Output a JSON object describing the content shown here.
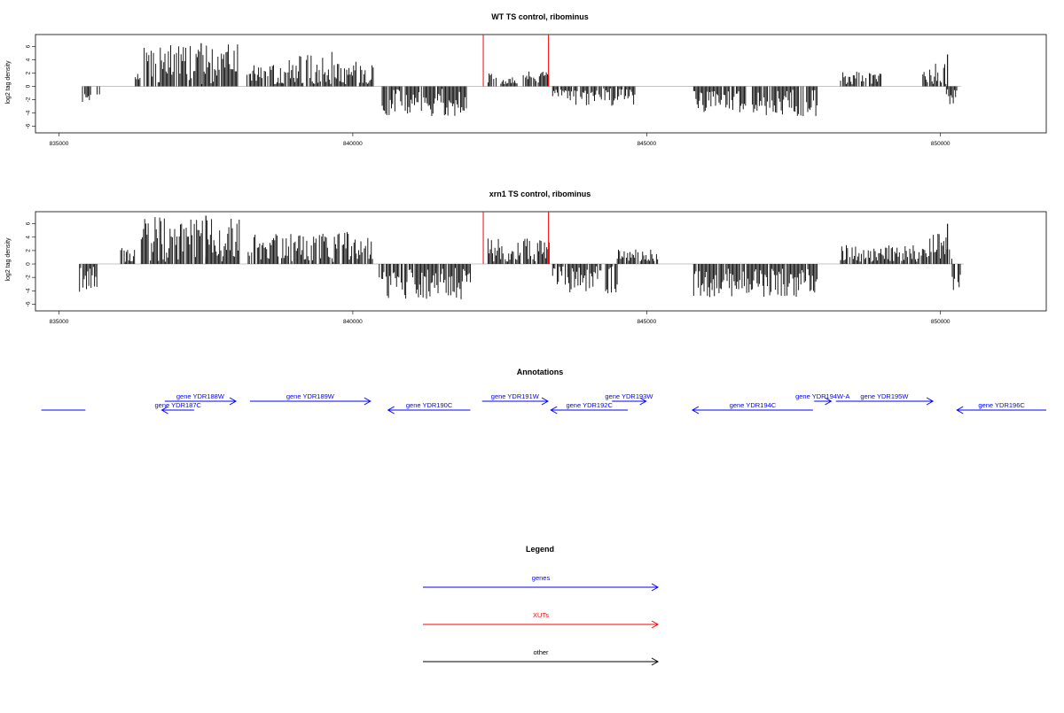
{
  "chart_data": [
    {
      "type": "bar",
      "title": "WT TS control, ribominus",
      "ylabel": "log2 tag density",
      "xlim": [
        834600,
        851800
      ],
      "ylim": [
        -7,
        7.8
      ],
      "x_ticks": [
        835000,
        840000,
        845000,
        850000
      ],
      "x_tick_labels": [
        "835000",
        "840000",
        "845000",
        "850000"
      ],
      "y_ticks": [
        -6,
        -4,
        -2,
        0,
        2,
        4,
        6
      ],
      "y_tick_labels": [
        "-6",
        "-4",
        "-2",
        "0",
        "2",
        "4",
        "6"
      ],
      "xut_lines_x": [
        842220,
        843330
      ],
      "coverage_segments": [
        {
          "start": 835400,
          "end": 835550,
          "mean": -1.5,
          "amp": 1.2
        },
        {
          "start": 835650,
          "end": 835700,
          "mean": -1.5,
          "amp": 0.4
        },
        {
          "start": 836300,
          "end": 836380,
          "mean": 1.5,
          "amp": 1.2
        },
        {
          "start": 836450,
          "end": 838050,
          "mean": 3.2,
          "amp": 3.2
        },
        {
          "start": 838200,
          "end": 838800,
          "mean": 1.6,
          "amp": 1.6
        },
        {
          "start": 838800,
          "end": 839700,
          "mean": 2.4,
          "amp": 2.8
        },
        {
          "start": 839700,
          "end": 840350,
          "mean": 1.8,
          "amp": 2.0
        },
        {
          "start": 840500,
          "end": 841950,
          "mean": -2.3,
          "amp": 2.2
        },
        {
          "start": 842300,
          "end": 842450,
          "mean": 1.2,
          "amp": 1.4
        },
        {
          "start": 842500,
          "end": 842800,
          "mean": 0.8,
          "amp": 0.6
        },
        {
          "start": 842900,
          "end": 843350,
          "mean": 1.4,
          "amp": 1.0
        },
        {
          "start": 843400,
          "end": 843700,
          "mean": -1.2,
          "amp": 0.7
        },
        {
          "start": 843700,
          "end": 844800,
          "mean": -1.4,
          "amp": 1.6
        },
        {
          "start": 845800,
          "end": 846700,
          "mean": -2.3,
          "amp": 1.6
        },
        {
          "start": 846800,
          "end": 847900,
          "mean": -2.5,
          "amp": 2.0
        },
        {
          "start": 848300,
          "end": 849000,
          "mean": 1.1,
          "amp": 1.2
        },
        {
          "start": 849700,
          "end": 850100,
          "mean": 1.6,
          "amp": 2.0
        },
        {
          "start": 850100,
          "end": 850300,
          "mean": -1.5,
          "amp": 1.3
        }
      ],
      "peaks": [
        {
          "x": 850120,
          "y": 4.8
        },
        {
          "x": 837420,
          "y": 6.5
        }
      ]
    },
    {
      "type": "bar",
      "title": "xrn1 TS control, ribominus",
      "ylabel": "log2 tag density",
      "xlim": [
        834600,
        851800
      ],
      "ylim": [
        -7,
        7.8
      ],
      "x_ticks": [
        835000,
        840000,
        845000,
        850000
      ],
      "x_tick_labels": [
        "835000",
        "840000",
        "845000",
        "850000"
      ],
      "y_ticks": [
        -6,
        -4,
        -2,
        0,
        2,
        4,
        6
      ],
      "y_tick_labels": [
        "-6",
        "-4",
        "-2",
        "0",
        "2",
        "4",
        "6"
      ],
      "xut_lines_x": [
        842220,
        843330
      ],
      "coverage_segments": [
        {
          "start": 835350,
          "end": 835650,
          "mean": -2.0,
          "amp": 2.2
        },
        {
          "start": 836050,
          "end": 836300,
          "mean": 1.2,
          "amp": 1.2
        },
        {
          "start": 836400,
          "end": 838100,
          "mean": 3.6,
          "amp": 3.4
        },
        {
          "start": 838200,
          "end": 839000,
          "mean": 2.4,
          "amp": 2.2
        },
        {
          "start": 839000,
          "end": 840350,
          "mean": 2.2,
          "amp": 2.6
        },
        {
          "start": 840450,
          "end": 842000,
          "mean": -3.0,
          "amp": 2.4
        },
        {
          "start": 842300,
          "end": 843350,
          "mean": 1.8,
          "amp": 2.0
        },
        {
          "start": 843400,
          "end": 844500,
          "mean": -2.3,
          "amp": 2.2
        },
        {
          "start": 844500,
          "end": 845200,
          "mean": 1.0,
          "amp": 1.2
        },
        {
          "start": 845800,
          "end": 847950,
          "mean": -2.8,
          "amp": 2.2
        },
        {
          "start": 848300,
          "end": 849800,
          "mean": 1.4,
          "amp": 1.4
        },
        {
          "start": 849800,
          "end": 850200,
          "mean": 2.6,
          "amp": 2.0
        },
        {
          "start": 850200,
          "end": 850350,
          "mean": -2.5,
          "amp": 1.6
        }
      ],
      "peaks": [
        {
          "x": 850120,
          "y": 6.0
        },
        {
          "x": 837500,
          "y": 7.2
        }
      ]
    }
  ],
  "annotations": {
    "title": "Annotations",
    "features": [
      {
        "label": "",
        "start": 834700,
        "end": 835450,
        "strand": "none",
        "row": 1,
        "kind": "gene"
      },
      {
        "label": "gene YDR187C",
        "start": 836750,
        "end": 837300,
        "strand": "-",
        "row": 1,
        "kind": "gene"
      },
      {
        "label": "gene YDR188W",
        "start": 836800,
        "end": 838010,
        "strand": "+",
        "row": 0,
        "kind": "gene"
      },
      {
        "label": "gene YDR189W",
        "start": 838250,
        "end": 840300,
        "strand": "+",
        "row": 0,
        "kind": "gene"
      },
      {
        "label": "gene YDR190C",
        "start": 840600,
        "end": 842000,
        "strand": "-",
        "row": 1,
        "kind": "gene"
      },
      {
        "label": "gene YDR191W",
        "start": 842200,
        "end": 843320,
        "strand": "+",
        "row": 0,
        "kind": "gene"
      },
      {
        "label": "gene YDR192C",
        "start": 843370,
        "end": 844680,
        "strand": "-",
        "row": 1,
        "kind": "gene"
      },
      {
        "label": "gene YDR193W",
        "start": 844410,
        "end": 844990,
        "strand": "+",
        "row": 0,
        "kind": "gene"
      },
      {
        "label": "gene YDR194C",
        "start": 845780,
        "end": 847830,
        "strand": "-",
        "row": 1,
        "kind": "gene"
      },
      {
        "label": "gene YDR194W-A",
        "start": 847850,
        "end": 848140,
        "strand": "+",
        "row": 0,
        "kind": "gene"
      },
      {
        "label": "gene YDR195W",
        "start": 848220,
        "end": 849870,
        "strand": "+",
        "row": 0,
        "kind": "gene"
      },
      {
        "label": "gene YDR196C",
        "start": 850280,
        "end": 851800,
        "strand": "-",
        "row": 1,
        "kind": "gene"
      }
    ]
  },
  "legend": {
    "title": "Legend",
    "items": [
      {
        "label": "genes",
        "color": "#0000ff"
      },
      {
        "label": "XUTs",
        "color": "#ff0000"
      },
      {
        "label": "other",
        "color": "#000000"
      }
    ]
  },
  "colors": {
    "gene": "#0000ff",
    "xut": "#ff0000",
    "other": "#000000",
    "baseline": "#b0b0b0"
  }
}
